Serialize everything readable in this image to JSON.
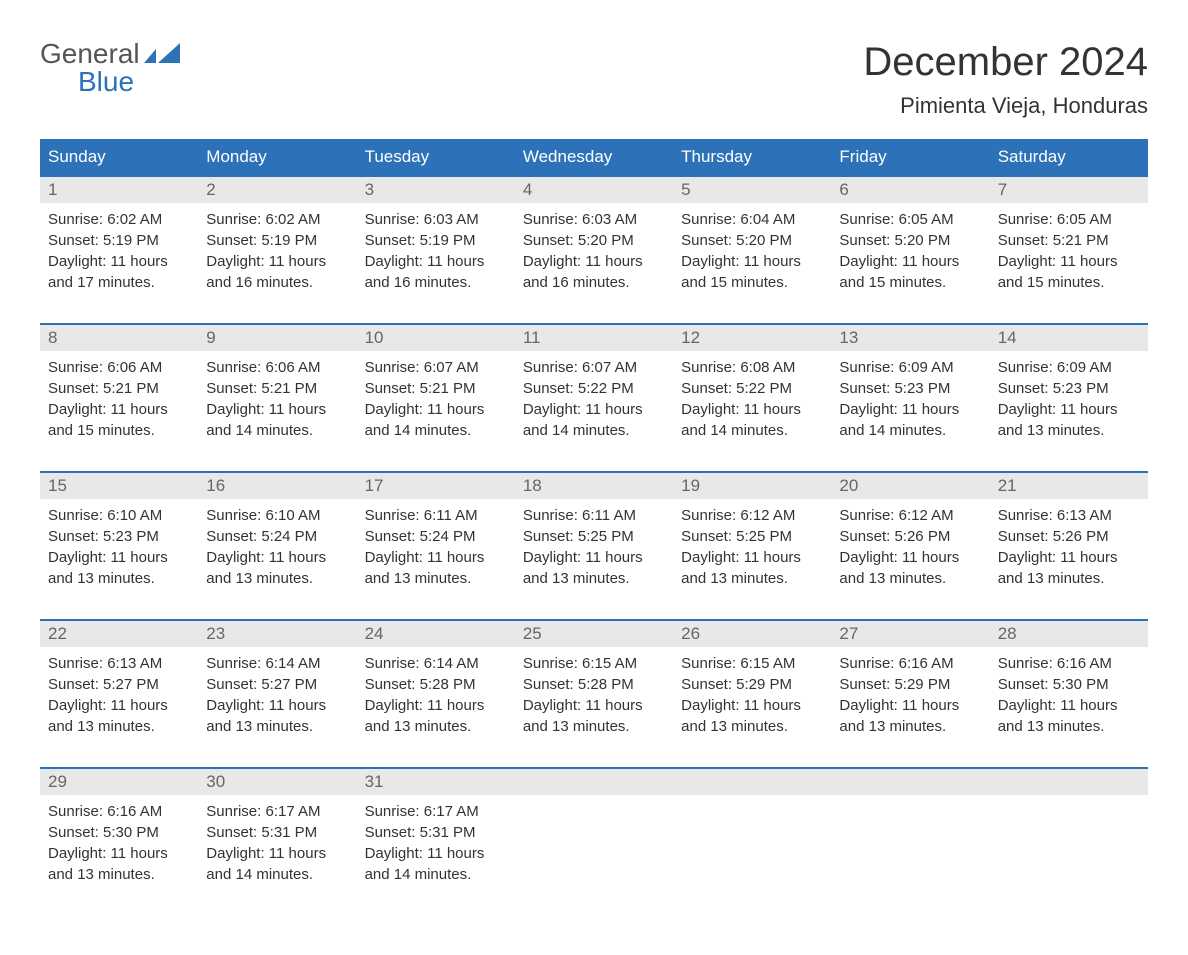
{
  "logo": {
    "top": "General",
    "bottom": "Blue"
  },
  "title": "December 2024",
  "location": "Pimienta Vieja, Honduras",
  "weekdays": [
    "Sunday",
    "Monday",
    "Tuesday",
    "Wednesday",
    "Thursday",
    "Friday",
    "Saturday"
  ],
  "colors": {
    "header_bg": "#2d72b8",
    "header_text": "#ffffff",
    "day_number_bg": "#e8e8e8",
    "day_number_text": "#666666",
    "body_text": "#333333",
    "logo_top": "#555555",
    "logo_bottom": "#2d72b8",
    "week_border": "#2d72b8"
  },
  "weeks": [
    [
      {
        "day": "1",
        "sunrise": "Sunrise: 6:02 AM",
        "sunset": "Sunset: 5:19 PM",
        "daylight1": "Daylight: 11 hours",
        "daylight2": "and 17 minutes."
      },
      {
        "day": "2",
        "sunrise": "Sunrise: 6:02 AM",
        "sunset": "Sunset: 5:19 PM",
        "daylight1": "Daylight: 11 hours",
        "daylight2": "and 16 minutes."
      },
      {
        "day": "3",
        "sunrise": "Sunrise: 6:03 AM",
        "sunset": "Sunset: 5:19 PM",
        "daylight1": "Daylight: 11 hours",
        "daylight2": "and 16 minutes."
      },
      {
        "day": "4",
        "sunrise": "Sunrise: 6:03 AM",
        "sunset": "Sunset: 5:20 PM",
        "daylight1": "Daylight: 11 hours",
        "daylight2": "and 16 minutes."
      },
      {
        "day": "5",
        "sunrise": "Sunrise: 6:04 AM",
        "sunset": "Sunset: 5:20 PM",
        "daylight1": "Daylight: 11 hours",
        "daylight2": "and 15 minutes."
      },
      {
        "day": "6",
        "sunrise": "Sunrise: 6:05 AM",
        "sunset": "Sunset: 5:20 PM",
        "daylight1": "Daylight: 11 hours",
        "daylight2": "and 15 minutes."
      },
      {
        "day": "7",
        "sunrise": "Sunrise: 6:05 AM",
        "sunset": "Sunset: 5:21 PM",
        "daylight1": "Daylight: 11 hours",
        "daylight2": "and 15 minutes."
      }
    ],
    [
      {
        "day": "8",
        "sunrise": "Sunrise: 6:06 AM",
        "sunset": "Sunset: 5:21 PM",
        "daylight1": "Daylight: 11 hours",
        "daylight2": "and 15 minutes."
      },
      {
        "day": "9",
        "sunrise": "Sunrise: 6:06 AM",
        "sunset": "Sunset: 5:21 PM",
        "daylight1": "Daylight: 11 hours",
        "daylight2": "and 14 minutes."
      },
      {
        "day": "10",
        "sunrise": "Sunrise: 6:07 AM",
        "sunset": "Sunset: 5:21 PM",
        "daylight1": "Daylight: 11 hours",
        "daylight2": "and 14 minutes."
      },
      {
        "day": "11",
        "sunrise": "Sunrise: 6:07 AM",
        "sunset": "Sunset: 5:22 PM",
        "daylight1": "Daylight: 11 hours",
        "daylight2": "and 14 minutes."
      },
      {
        "day": "12",
        "sunrise": "Sunrise: 6:08 AM",
        "sunset": "Sunset: 5:22 PM",
        "daylight1": "Daylight: 11 hours",
        "daylight2": "and 14 minutes."
      },
      {
        "day": "13",
        "sunrise": "Sunrise: 6:09 AM",
        "sunset": "Sunset: 5:23 PM",
        "daylight1": "Daylight: 11 hours",
        "daylight2": "and 14 minutes."
      },
      {
        "day": "14",
        "sunrise": "Sunrise: 6:09 AM",
        "sunset": "Sunset: 5:23 PM",
        "daylight1": "Daylight: 11 hours",
        "daylight2": "and 13 minutes."
      }
    ],
    [
      {
        "day": "15",
        "sunrise": "Sunrise: 6:10 AM",
        "sunset": "Sunset: 5:23 PM",
        "daylight1": "Daylight: 11 hours",
        "daylight2": "and 13 minutes."
      },
      {
        "day": "16",
        "sunrise": "Sunrise: 6:10 AM",
        "sunset": "Sunset: 5:24 PM",
        "daylight1": "Daylight: 11 hours",
        "daylight2": "and 13 minutes."
      },
      {
        "day": "17",
        "sunrise": "Sunrise: 6:11 AM",
        "sunset": "Sunset: 5:24 PM",
        "daylight1": "Daylight: 11 hours",
        "daylight2": "and 13 minutes."
      },
      {
        "day": "18",
        "sunrise": "Sunrise: 6:11 AM",
        "sunset": "Sunset: 5:25 PM",
        "daylight1": "Daylight: 11 hours",
        "daylight2": "and 13 minutes."
      },
      {
        "day": "19",
        "sunrise": "Sunrise: 6:12 AM",
        "sunset": "Sunset: 5:25 PM",
        "daylight1": "Daylight: 11 hours",
        "daylight2": "and 13 minutes."
      },
      {
        "day": "20",
        "sunrise": "Sunrise: 6:12 AM",
        "sunset": "Sunset: 5:26 PM",
        "daylight1": "Daylight: 11 hours",
        "daylight2": "and 13 minutes."
      },
      {
        "day": "21",
        "sunrise": "Sunrise: 6:13 AM",
        "sunset": "Sunset: 5:26 PM",
        "daylight1": "Daylight: 11 hours",
        "daylight2": "and 13 minutes."
      }
    ],
    [
      {
        "day": "22",
        "sunrise": "Sunrise: 6:13 AM",
        "sunset": "Sunset: 5:27 PM",
        "daylight1": "Daylight: 11 hours",
        "daylight2": "and 13 minutes."
      },
      {
        "day": "23",
        "sunrise": "Sunrise: 6:14 AM",
        "sunset": "Sunset: 5:27 PM",
        "daylight1": "Daylight: 11 hours",
        "daylight2": "and 13 minutes."
      },
      {
        "day": "24",
        "sunrise": "Sunrise: 6:14 AM",
        "sunset": "Sunset: 5:28 PM",
        "daylight1": "Daylight: 11 hours",
        "daylight2": "and 13 minutes."
      },
      {
        "day": "25",
        "sunrise": "Sunrise: 6:15 AM",
        "sunset": "Sunset: 5:28 PM",
        "daylight1": "Daylight: 11 hours",
        "daylight2": "and 13 minutes."
      },
      {
        "day": "26",
        "sunrise": "Sunrise: 6:15 AM",
        "sunset": "Sunset: 5:29 PM",
        "daylight1": "Daylight: 11 hours",
        "daylight2": "and 13 minutes."
      },
      {
        "day": "27",
        "sunrise": "Sunrise: 6:16 AM",
        "sunset": "Sunset: 5:29 PM",
        "daylight1": "Daylight: 11 hours",
        "daylight2": "and 13 minutes."
      },
      {
        "day": "28",
        "sunrise": "Sunrise: 6:16 AM",
        "sunset": "Sunset: 5:30 PM",
        "daylight1": "Daylight: 11 hours",
        "daylight2": "and 13 minutes."
      }
    ],
    [
      {
        "day": "29",
        "sunrise": "Sunrise: 6:16 AM",
        "sunset": "Sunset: 5:30 PM",
        "daylight1": "Daylight: 11 hours",
        "daylight2": "and 13 minutes."
      },
      {
        "day": "30",
        "sunrise": "Sunrise: 6:17 AM",
        "sunset": "Sunset: 5:31 PM",
        "daylight1": "Daylight: 11 hours",
        "daylight2": "and 14 minutes."
      },
      {
        "day": "31",
        "sunrise": "Sunrise: 6:17 AM",
        "sunset": "Sunset: 5:31 PM",
        "daylight1": "Daylight: 11 hours",
        "daylight2": "and 14 minutes."
      },
      null,
      null,
      null,
      null
    ]
  ]
}
